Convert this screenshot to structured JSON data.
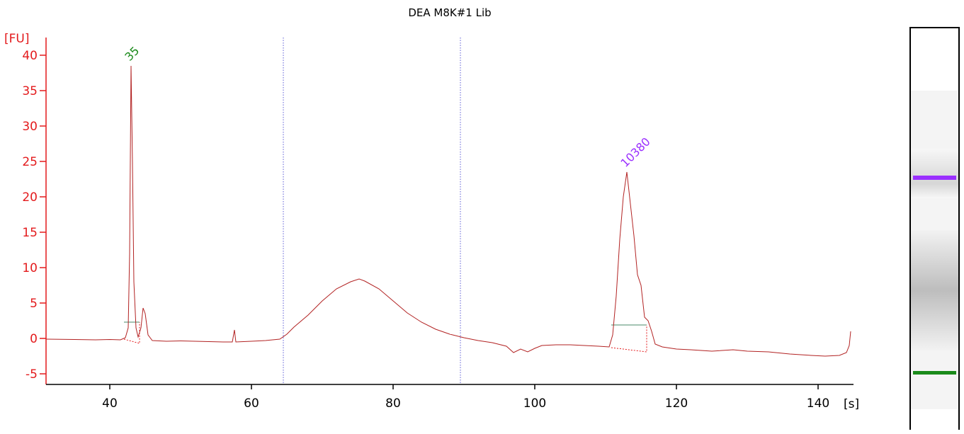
{
  "chart_data": {
    "type": "line",
    "title": "DEA M8K#1 Lib",
    "xlabel": "[s]",
    "ylabel": "[FU]",
    "xlim": [
      31,
      145
    ],
    "ylim": [
      -6.5,
      42.5
    ],
    "xticks": [
      40,
      60,
      80,
      100,
      120,
      140
    ],
    "yticks": [
      -5,
      0,
      5,
      10,
      15,
      20,
      25,
      30,
      35,
      40
    ],
    "grid": false,
    "colors": {
      "axis": "#e31a1c",
      "trace": "#b22222",
      "marker": "#5b5bd6",
      "lower_label": "#1a8a1a",
      "upper_label": "#9b30ff",
      "baseline": "#4a8a6a"
    },
    "series": [
      {
        "points": [
          [
            31,
            -0.1
          ],
          [
            35,
            -0.15
          ],
          [
            38,
            -0.2
          ],
          [
            40,
            -0.15
          ],
          [
            41.5,
            -0.2
          ],
          [
            42.2,
            0.1
          ],
          [
            42.6,
            1.5
          ],
          [
            42.8,
            12
          ],
          [
            43,
            38.5
          ],
          [
            43.2,
            25
          ],
          [
            43.4,
            8
          ],
          [
            43.7,
            1.5
          ],
          [
            44,
            0.2
          ],
          [
            44.4,
            1.5
          ],
          [
            44.7,
            4.3
          ],
          [
            45,
            3.5
          ],
          [
            45.4,
            0.5
          ],
          [
            46,
            -0.3
          ],
          [
            48,
            -0.4
          ],
          [
            50,
            -0.35
          ],
          [
            52,
            -0.4
          ],
          [
            54,
            -0.45
          ],
          [
            56,
            -0.5
          ],
          [
            57.3,
            -0.5
          ],
          [
            57.6,
            1.2
          ],
          [
            57.8,
            -0.5
          ],
          [
            60,
            -0.4
          ],
          [
            62,
            -0.3
          ],
          [
            64,
            -0.1
          ],
          [
            65,
            0.6
          ],
          [
            66,
            1.6
          ],
          [
            68,
            3.3
          ],
          [
            70,
            5.3
          ],
          [
            72,
            7
          ],
          [
            74,
            8
          ],
          [
            75.2,
            8.4
          ],
          [
            76,
            8.1
          ],
          [
            78,
            7
          ],
          [
            80,
            5.3
          ],
          [
            82,
            3.6
          ],
          [
            84,
            2.3
          ],
          [
            86,
            1.3
          ],
          [
            88,
            0.6
          ],
          [
            90,
            0.1
          ],
          [
            92,
            -0.3
          ],
          [
            94,
            -0.6
          ],
          [
            96,
            -1.1
          ],
          [
            97,
            -2
          ],
          [
            98,
            -1.5
          ],
          [
            99,
            -1.9
          ],
          [
            100,
            -1.4
          ],
          [
            101,
            -1.0
          ],
          [
            103,
            -0.9
          ],
          [
            105,
            -0.9
          ],
          [
            107,
            -1
          ],
          [
            109,
            -1.1
          ],
          [
            110.5,
            -1.2
          ],
          [
            111,
            0.5
          ],
          [
            111.5,
            6
          ],
          [
            112,
            14
          ],
          [
            112.5,
            20
          ],
          [
            113,
            23.5
          ],
          [
            113.5,
            19
          ],
          [
            114,
            14.5
          ],
          [
            114.5,
            9
          ],
          [
            115,
            7.5
          ],
          [
            115.5,
            3
          ],
          [
            116,
            2.5
          ],
          [
            116.5,
            1
          ],
          [
            117,
            -0.8
          ],
          [
            118,
            -1.2
          ],
          [
            120,
            -1.5
          ],
          [
            122,
            -1.6
          ],
          [
            125,
            -1.8
          ],
          [
            128,
            -1.6
          ],
          [
            130,
            -1.8
          ],
          [
            133,
            -1.9
          ],
          [
            136,
            -2.2
          ],
          [
            139,
            -2.4
          ],
          [
            141,
            -2.5
          ],
          [
            143,
            -2.4
          ],
          [
            144,
            -2
          ],
          [
            144.4,
            -1
          ],
          [
            144.6,
            1
          ]
        ]
      }
    ],
    "markers": [
      {
        "label": "35",
        "x": 43,
        "y": 38.5,
        "color": "#1a8a1a"
      },
      {
        "label": "10380",
        "x": 113,
        "y": 23.5,
        "color": "#9b30ff"
      }
    ],
    "vertical_lines": [
      64.5,
      89.5
    ],
    "peak_baselines": [
      {
        "x1": 42,
        "x2": 44.2,
        "y": 2.3,
        "floor_y": -0.1
      },
      {
        "x1": 110.8,
        "x2": 115.8,
        "y": 1.9,
        "floor_y": -1.3
      }
    ],
    "gel_bands": [
      {
        "position": "upper",
        "color": "#9b30ff"
      },
      {
        "position": "lower",
        "color": "#1a8a1a"
      }
    ]
  }
}
